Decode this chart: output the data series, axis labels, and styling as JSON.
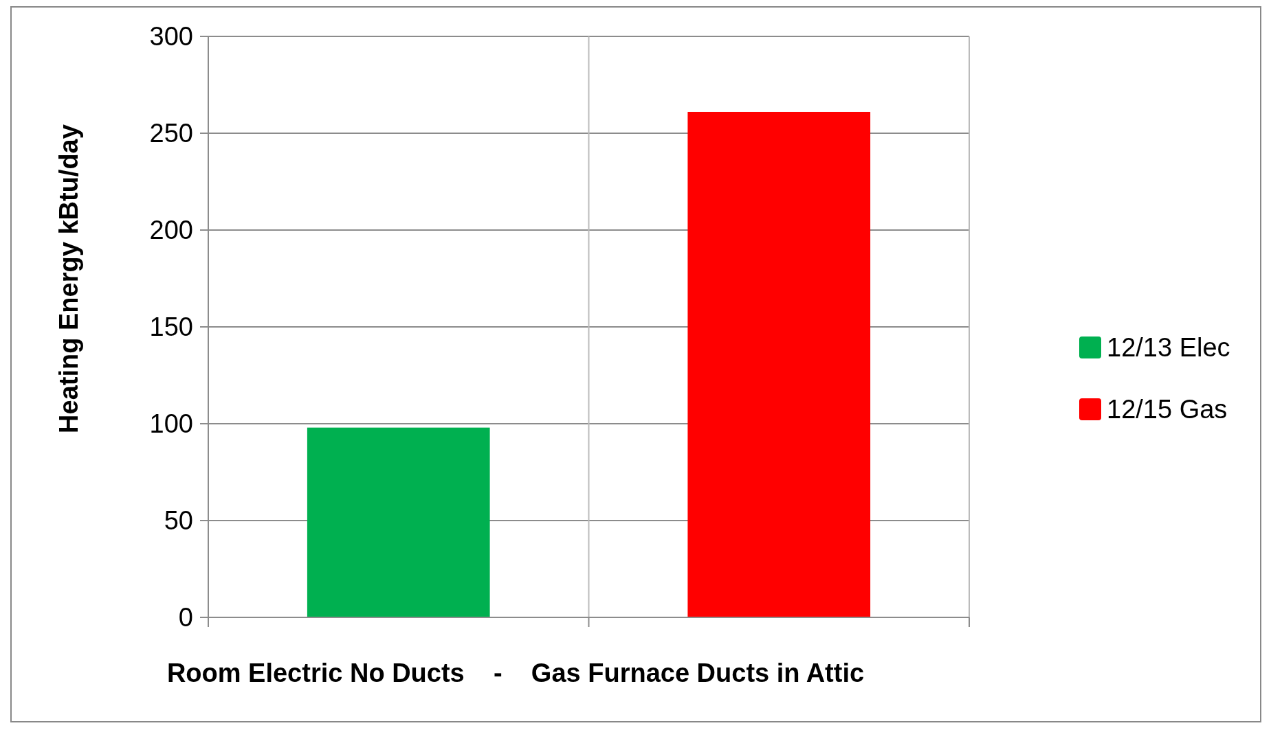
{
  "chart_data": {
    "type": "bar",
    "xlabel": "Room Electric No Ducts    -    Gas Furnace Ducts in Attic",
    "ylabel": "Heating Energy kBtu/day",
    "categories": [
      null,
      null
    ],
    "series": [
      {
        "name": "12/13 Elec",
        "color": "#00b050",
        "values": [
          98,
          null
        ]
      },
      {
        "name": "12/15 Gas",
        "color": "#ff0000",
        "values": [
          null,
          261
        ]
      }
    ],
    "ylim": [
      0,
      300
    ],
    "yticks": [
      0,
      50,
      100,
      150,
      200,
      250,
      300
    ],
    "grid": true,
    "legend": "right"
  }
}
